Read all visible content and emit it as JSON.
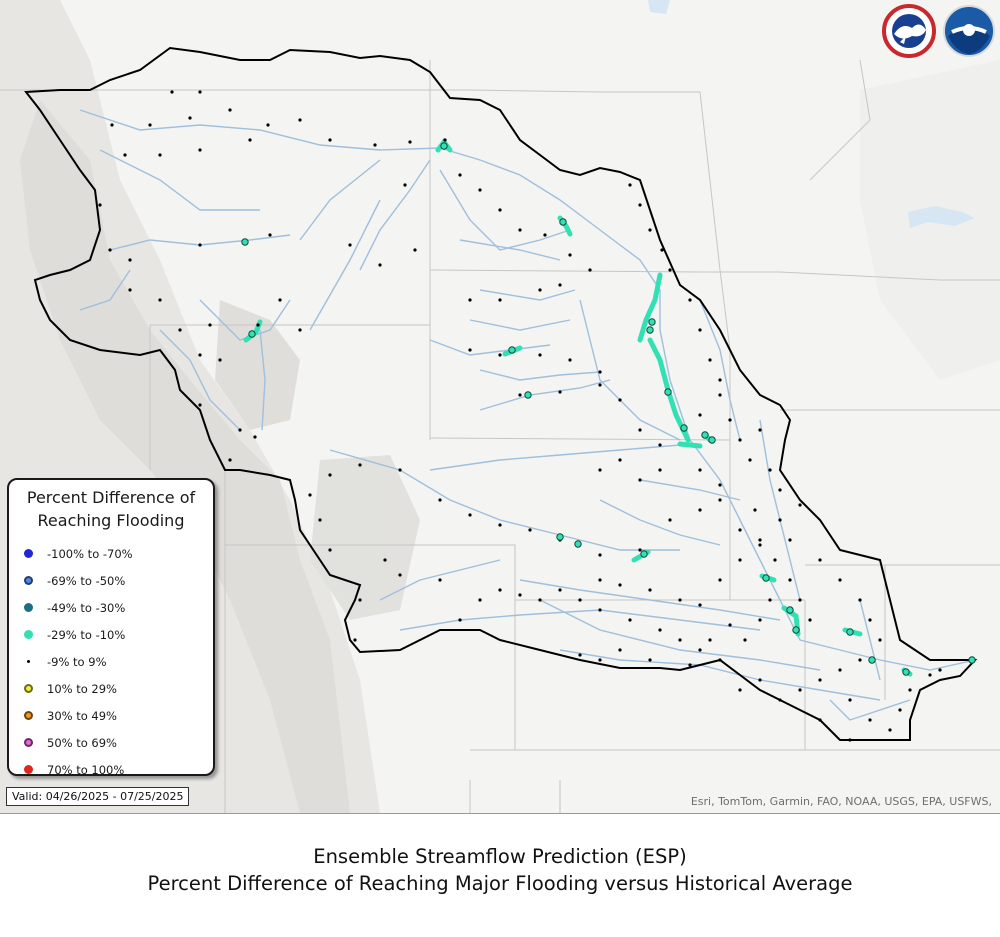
{
  "legend": {
    "title_line1": "Percent Difference of",
    "title_line2": "Reaching Flooding",
    "items": [
      {
        "label": "-100% to -70%",
        "color": "#1f27d6",
        "style": "solid"
      },
      {
        "label": "-69% to -50%",
        "color": "#4f89e6",
        "style": "ring"
      },
      {
        "label": "-49% to -30%",
        "color": "#1a6f86",
        "style": "solid"
      },
      {
        "label": "-29% to -10%",
        "color": "#33e0b4",
        "style": "solid"
      },
      {
        "label": "-9% to 9%",
        "color": "#000000",
        "style": "small"
      },
      {
        "label": "10% to 29%",
        "color": "#f2ef3c",
        "style": "ring"
      },
      {
        "label": "30% to 49%",
        "color": "#ef9a1e",
        "style": "ring"
      },
      {
        "label": "50% to 69%",
        "color": "#e866d6",
        "style": "ring"
      },
      {
        "label": "70% to 100%",
        "color": "#e0261c",
        "style": "solid"
      }
    ]
  },
  "valid": "Valid: 04/26/2025 - 07/25/2025",
  "attribution": "Esri, TomTom, Garmin, FAO, NOAA, USGS, EPA, USFWS,",
  "logos": {
    "nws_icon": "nws-logo-icon",
    "noaa_icon": "noaa-logo-icon"
  },
  "caption": {
    "line1": "Ensemble Streamflow Prediction (ESP)",
    "line2": "Percent Difference of Reaching Major Flooding versus Historical Average"
  },
  "colors": {
    "basin_outline": "#000000",
    "river": "#9fbfdc",
    "state_line": "#c8c8c8",
    "highlight": "#33e0b4",
    "point": "#000000"
  }
}
